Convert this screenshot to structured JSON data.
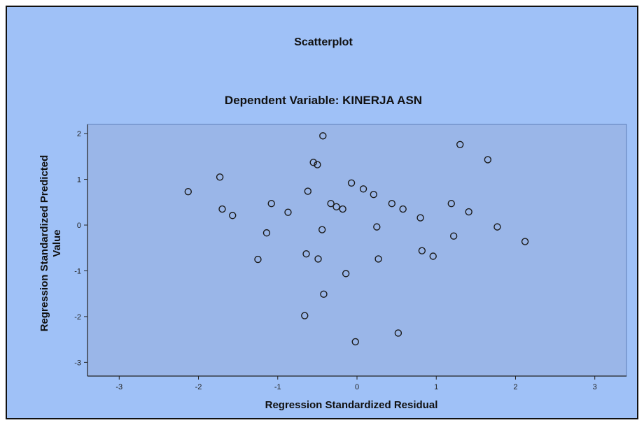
{
  "colors": {
    "background": "#9fc1f7",
    "plot_area": "#9ab6e8",
    "axis": "#222222",
    "marker_stroke": "#1a1a1a"
  },
  "chart_data": {
    "type": "scatter",
    "title": "Scatterplot",
    "subtitle": "Dependent Variable: KINERJA ASN",
    "xlabel": "Regression Standardized Residual",
    "ylabel": [
      "Regression Standardized Predicted",
      "Value"
    ],
    "xlim": [
      -3.4,
      3.4
    ],
    "ylim": [
      -3.3,
      2.2
    ],
    "xticks": [
      -3,
      -2,
      -1,
      0,
      1,
      2,
      3
    ],
    "yticks": [
      2,
      1,
      0,
      -1,
      -2,
      -3
    ],
    "grid": false,
    "marker": "open-circle",
    "points": [
      {
        "x": -2.13,
        "y": 0.73
      },
      {
        "x": -1.73,
        "y": 1.05
      },
      {
        "x": -1.7,
        "y": 0.35
      },
      {
        "x": -1.57,
        "y": 0.21
      },
      {
        "x": -1.25,
        "y": -0.75
      },
      {
        "x": -1.14,
        "y": -0.17
      },
      {
        "x": -1.08,
        "y": 0.47
      },
      {
        "x": -0.87,
        "y": 0.28
      },
      {
        "x": -0.64,
        "y": -0.63
      },
      {
        "x": -0.66,
        "y": -1.98
      },
      {
        "x": -0.62,
        "y": 0.74
      },
      {
        "x": -0.55,
        "y": 1.37
      },
      {
        "x": -0.5,
        "y": 1.32
      },
      {
        "x": -0.49,
        "y": -0.74
      },
      {
        "x": -0.44,
        "y": -0.1
      },
      {
        "x": -0.43,
        "y": 1.95
      },
      {
        "x": -0.42,
        "y": -1.51
      },
      {
        "x": -0.33,
        "y": 0.47
      },
      {
        "x": -0.26,
        "y": 0.4
      },
      {
        "x": -0.18,
        "y": 0.35
      },
      {
        "x": -0.14,
        "y": -1.06
      },
      {
        "x": -0.07,
        "y": 0.92
      },
      {
        "x": -0.02,
        "y": -2.55
      },
      {
        "x": 0.08,
        "y": 0.79
      },
      {
        "x": 0.21,
        "y": 0.67
      },
      {
        "x": 0.25,
        "y": -0.04
      },
      {
        "x": 0.27,
        "y": -0.74
      },
      {
        "x": 0.44,
        "y": 0.47
      },
      {
        "x": 0.52,
        "y": -2.36
      },
      {
        "x": 0.58,
        "y": 0.35
      },
      {
        "x": 0.8,
        "y": 0.16
      },
      {
        "x": 0.82,
        "y": -0.56
      },
      {
        "x": 0.96,
        "y": -0.68
      },
      {
        "x": 1.19,
        "y": 0.47
      },
      {
        "x": 1.22,
        "y": -0.24
      },
      {
        "x": 1.3,
        "y": 1.76
      },
      {
        "x": 1.41,
        "y": 0.29
      },
      {
        "x": 1.65,
        "y": 1.43
      },
      {
        "x": 1.77,
        "y": -0.04
      },
      {
        "x": 2.12,
        "y": -0.36
      }
    ]
  }
}
